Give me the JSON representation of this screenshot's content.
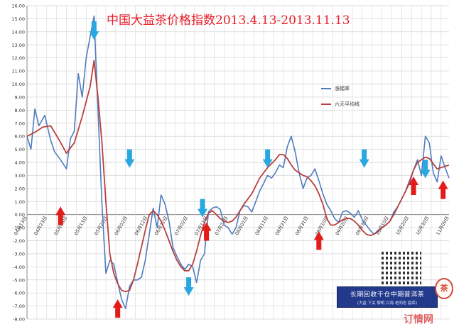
{
  "chart_data": {
    "type": "line",
    "title": "中国大益茶价格指数2013.4.13-2013.11.13",
    "ylim": [
      -8,
      16
    ],
    "y_ticks": [
      "16.00",
      "15.00",
      "14.00",
      "13.00",
      "12.00",
      "11.00",
      "10.00",
      "9.00",
      "8.00",
      "7.00",
      "6.00",
      "5.00",
      "4.00",
      "3.00",
      "2.00",
      "1.00",
      "0.00",
      "-1.00",
      "-2.00",
      "-3.00",
      "-4.00",
      "-5.00",
      "-6.00",
      "-7.00",
      "-8.00"
    ],
    "x_ticks": [
      "04月13日",
      "04月23日",
      "05月03日",
      "05月13日",
      "05月23日",
      "06月02日",
      "06月12日",
      "06月22日",
      "07月02日",
      "07月12日",
      "07月22日",
      "08月01日",
      "08月11日",
      "08月21日",
      "08月31日",
      "09月10日",
      "09月20日",
      "09月30日",
      "10月10日",
      "10月20日",
      "10月30日",
      "11月09日"
    ],
    "x_range": [
      0,
      214
    ],
    "grid": true,
    "legend_position": "right",
    "series": [
      {
        "name": "涨幅率",
        "color": "#4f7cbe",
        "x": [
          0,
          2,
          4,
          6,
          9,
          12,
          14,
          17,
          20,
          22,
          24,
          26,
          28,
          30,
          32,
          34,
          36,
          38,
          40,
          42,
          44,
          46,
          48,
          50,
          52,
          54,
          56,
          58,
          60,
          62,
          64,
          66,
          68,
          70,
          72,
          74,
          76,
          78,
          80,
          82,
          84,
          86,
          88,
          90,
          92,
          94,
          96,
          98,
          100,
          102,
          104,
          106,
          108,
          110,
          112,
          114,
          116,
          118,
          120,
          122,
          124,
          126,
          128,
          130,
          132,
          134,
          136,
          138,
          140,
          142,
          144,
          146,
          148,
          150,
          152,
          154,
          156,
          158,
          160,
          162,
          164,
          166,
          168,
          170,
          172,
          174,
          176,
          178,
          180,
          182,
          184,
          186,
          188,
          190,
          192,
          194,
          196,
          198,
          200,
          202,
          204,
          206,
          208,
          210,
          212,
          214
        ],
        "values": [
          6.0,
          5.0,
          8.1,
          6.8,
          7.6,
          5.7,
          4.8,
          4.2,
          3.5,
          5.8,
          6.4,
          10.8,
          9.0,
          12.0,
          13.6,
          15.2,
          8.0,
          0.8,
          -4.5,
          -3.5,
          -3.8,
          -5.2,
          -6.5,
          -7.2,
          -5.5,
          -5.0,
          -5.0,
          -4.8,
          -3.5,
          -1.5,
          0.5,
          -1.0,
          1.5,
          0.8,
          -0.5,
          -2.5,
          -3.2,
          -3.8,
          -4.2,
          -3.8,
          -4.0,
          -5.2,
          -3.5,
          -3.0,
          0.2,
          0.5,
          0.6,
          0.4,
          -0.8,
          -1.0,
          -1.5,
          -1.0,
          0.3,
          0.7,
          0.6,
          0.2,
          1.0,
          1.8,
          2.4,
          3.0,
          2.8,
          3.2,
          3.8,
          3.6,
          5.2,
          6.0,
          4.8,
          3.2,
          2.0,
          2.8,
          3.0,
          3.5,
          2.6,
          1.6,
          0.8,
          0.3,
          -0.3,
          -0.6,
          0.2,
          0.3,
          0.1,
          -0.2,
          0.3,
          -0.4,
          -0.8,
          -1.2,
          -1.5,
          -1.2,
          -1.0,
          -0.8,
          -0.5,
          0.2,
          0.6,
          1.2,
          1.8,
          2.4,
          3.4,
          4.2,
          3.0,
          6.0,
          5.5,
          3.2,
          2.5,
          4.5,
          3.6,
          2.8
        ]
      },
      {
        "name": "六天平均线",
        "color": "#b8403e",
        "x": [
          0,
          4,
          8,
          12,
          16,
          20,
          24,
          28,
          32,
          34,
          36,
          38,
          40,
          42,
          44,
          46,
          48,
          50,
          52,
          54,
          56,
          58,
          60,
          62,
          64,
          66,
          68,
          70,
          72,
          74,
          76,
          78,
          80,
          82,
          84,
          86,
          88,
          90,
          92,
          94,
          96,
          98,
          100,
          102,
          104,
          106,
          108,
          110,
          112,
          114,
          116,
          118,
          120,
          122,
          124,
          126,
          128,
          130,
          132,
          134,
          136,
          138,
          140,
          142,
          144,
          146,
          148,
          150,
          152,
          154,
          156,
          158,
          160,
          162,
          164,
          166,
          168,
          170,
          172,
          174,
          176,
          178,
          180,
          182,
          184,
          186,
          188,
          190,
          192,
          194,
          196,
          198,
          200,
          202,
          204,
          206,
          208,
          210,
          212,
          214
        ],
        "values": [
          6.0,
          6.3,
          6.7,
          6.8,
          5.8,
          4.7,
          5.5,
          7.5,
          9.8,
          11.8,
          9.0,
          5.5,
          1.0,
          -3.0,
          -4.5,
          -5.3,
          -5.8,
          -5.9,
          -5.8,
          -5.0,
          -3.8,
          -2.5,
          -1.2,
          0.0,
          0.3,
          0.0,
          -0.5,
          -1.2,
          -2.0,
          -2.8,
          -3.5,
          -4.0,
          -4.3,
          -4.3,
          -3.8,
          -2.8,
          -1.6,
          -0.6,
          0.1,
          0.3,
          0.0,
          -0.3,
          -0.5,
          -0.6,
          -0.5,
          -0.2,
          0.3,
          0.8,
          1.2,
          1.6,
          2.2,
          2.8,
          3.2,
          3.6,
          3.9,
          4.2,
          4.6,
          4.6,
          4.3,
          3.8,
          3.4,
          3.2,
          3.0,
          2.9,
          2.6,
          2.2,
          1.6,
          0.8,
          -0.3,
          -0.8,
          -0.8,
          -0.6,
          -0.4,
          -0.3,
          -0.3,
          -0.5,
          -0.8,
          -1.2,
          -1.5,
          -1.6,
          -1.5,
          -1.3,
          -1.0,
          -0.8,
          -0.5,
          0.0,
          0.6,
          1.2,
          1.8,
          2.6,
          3.4,
          4.0,
          4.2,
          4.4,
          4.3,
          3.9,
          3.5,
          3.6,
          3.7,
          3.8
        ]
      }
    ],
    "annotations": {
      "down_arrows": [
        [
          34,
          14.8
        ],
        [
          52,
          5.0
        ],
        [
          89,
          1.2
        ],
        [
          82,
          -4.8
        ],
        [
          122,
          5.0
        ],
        [
          171,
          5.0
        ],
        [
          202,
          4.2
        ]
      ],
      "up_arrows": [
        [
          17,
          -0.8
        ],
        [
          46,
          -7.9
        ],
        [
          91,
          -2.0
        ],
        [
          148,
          -2.7
        ],
        [
          196,
          1.5
        ],
        [
          211,
          1.2
        ]
      ]
    }
  },
  "promo": {
    "banner_line1": "长期回收干仓中期普洱茶",
    "banner_line2": "(大益   下关   黎明   兴海   老同志   勐库)",
    "watermark": "订情网"
  }
}
